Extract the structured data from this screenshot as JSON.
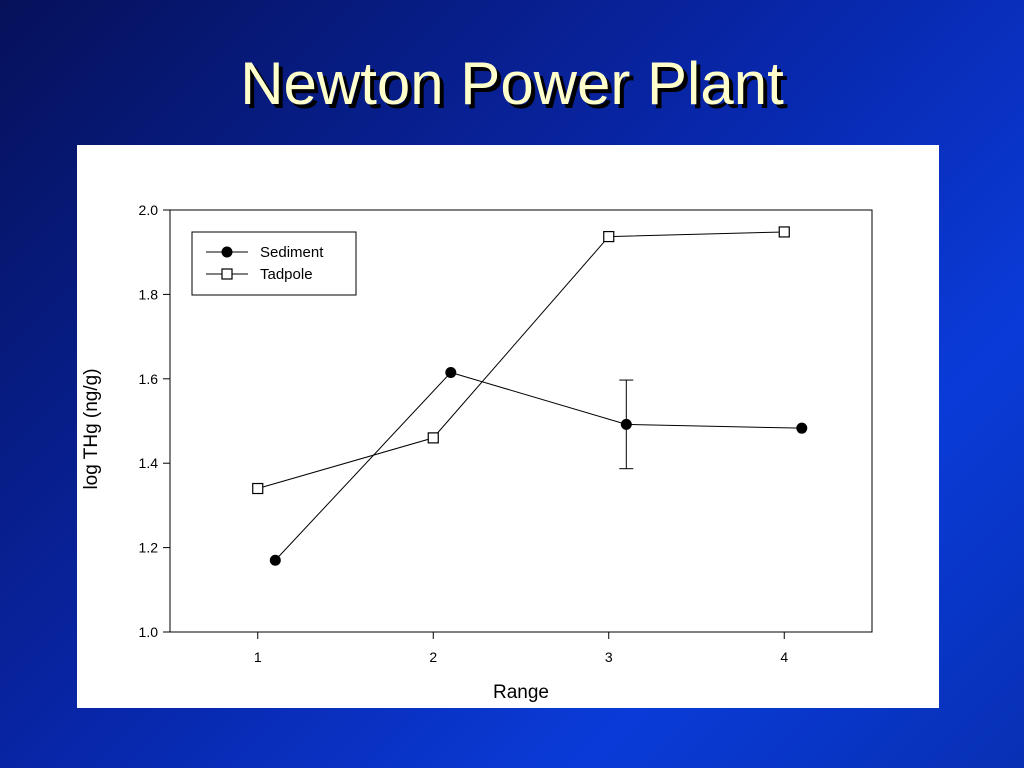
{
  "slide": {
    "title": "Newton Power Plant"
  },
  "chart_data": {
    "type": "line",
    "xlabel": "Range",
    "ylabel": "log THg (ng/g)",
    "xlim": [
      0.5,
      4.5
    ],
    "ylim": [
      1.0,
      2.0
    ],
    "x_ticks": [
      1,
      2,
      3,
      4
    ],
    "x_tick_labels": [
      "1",
      "2",
      "3",
      "4"
    ],
    "y_ticks": [
      1.0,
      1.2,
      1.4,
      1.6,
      1.8,
      2.0
    ],
    "y_tick_labels": [
      "1.0",
      "1.2",
      "1.4",
      "1.6",
      "1.8",
      "2.0"
    ],
    "grid": false,
    "legend_position": "top-left",
    "series": [
      {
        "name": "Sediment",
        "marker": "filled-circle",
        "color": "#000000",
        "x": [
          1.1,
          2.1,
          3.1,
          4.1
        ],
        "y": [
          1.17,
          1.615,
          1.492,
          1.483
        ],
        "error": [
          null,
          null,
          0.105,
          null
        ]
      },
      {
        "name": "Tadpole",
        "marker": "open-square",
        "color": "#000000",
        "x": [
          1,
          2,
          3,
          4
        ],
        "y": [
          1.34,
          1.46,
          1.937,
          1.948
        ],
        "error": [
          null,
          null,
          null,
          null
        ]
      }
    ]
  }
}
